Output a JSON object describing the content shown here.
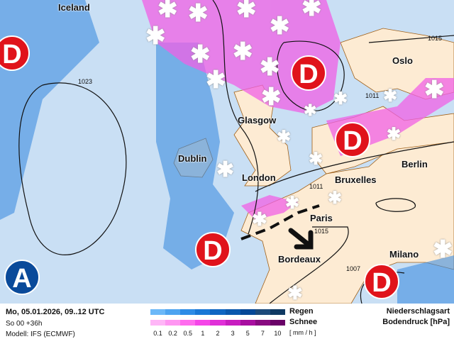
{
  "map": {
    "cities": [
      "Iceland",
      "Oslo",
      "Glasgow",
      "Dublin",
      "London",
      "Berlin",
      "Bruxelles",
      "Paris",
      "Bordeaux",
      "Milano"
    ],
    "isobars": [
      "1015",
      "1023",
      "1011",
      "1011",
      "1015",
      "1007"
    ],
    "pressure_systems": {
      "low_label": "D",
      "high_label": "A"
    },
    "icons": [
      "snowflake-icon",
      "low-pressure-icon",
      "high-pressure-icon",
      "front-line",
      "movement-arrow-icon"
    ]
  },
  "legend": {
    "date": "Mo, 05.01.2026, 09..12 UTC",
    "run": "So 00 +36h",
    "model": "Modell: IFS (ECMWF)",
    "rain_label": "Regen",
    "snow_label": "Schnee",
    "unit": "[ mm / h ]",
    "ticks": [
      "0.1",
      "0.2",
      "0.5",
      "1",
      "2",
      "3",
      "5",
      "7",
      "10"
    ],
    "rain_colors": [
      "#6cb8f8",
      "#4ea4f0",
      "#2e8ce6",
      "#1a78d6",
      "#0f66c2",
      "#0a58ad",
      "#064897",
      "#1d4a7a",
      "#0f3a63"
    ],
    "snow_colors": [
      "#ffb6f7",
      "#ff96f2",
      "#ff6cee",
      "#f546e8",
      "#e030d8",
      "#c81ec0",
      "#a80ea0",
      "#880a80",
      "#6a0268"
    ],
    "precip_type_label": "Niederschlagsart",
    "pressure_label": "Bodendruck [hPa]"
  }
}
